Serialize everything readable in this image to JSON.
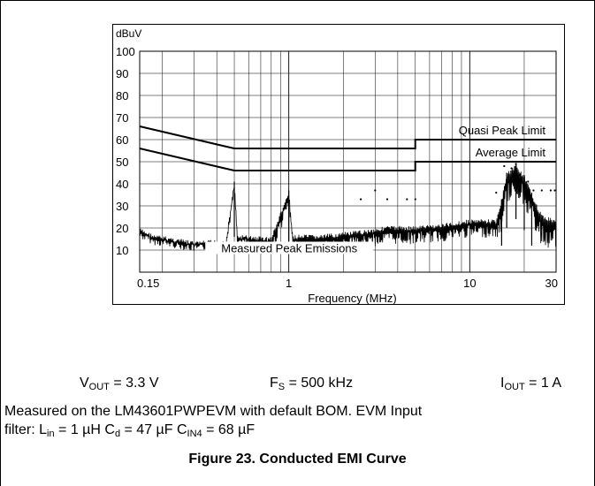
{
  "conditions": {
    "vout": {
      "sym": "V",
      "sub": "OUT",
      "value": "= 3.3 V"
    },
    "fs": {
      "sym": "F",
      "sub": "S",
      "value": "= 500 kHz"
    },
    "iout": {
      "sym": "I",
      "sub": "OUT",
      "value": "= 1 A"
    }
  },
  "note": {
    "line1": "Measured on the LM43601PWPEVM with default BOM. EVM Input",
    "line2_start": "filter: L",
    "lin_sub": "in",
    "lin_val": " = 1 µH C",
    "cd_sub": "d",
    "cd_val": " = 47 µF C",
    "cin_sub": "IN4",
    "cin_val": " = 68 µF"
  },
  "caption": "Figure 23. Conducted EMI Curve",
  "chart_data": {
    "type": "line",
    "ylabel": "dBuV",
    "xlabel": "Frequency (MHz)",
    "xscale": "log",
    "xlim": [
      0.15,
      30
    ],
    "ylim": [
      0,
      100
    ],
    "yticks": [
      10,
      20,
      30,
      40,
      50,
      60,
      70,
      80,
      90,
      100
    ],
    "xtick_labels": [
      {
        "value": 0.15,
        "label": "0.15"
      },
      {
        "value": 1,
        "label": "1"
      },
      {
        "value": 10,
        "label": "10"
      },
      {
        "value": 30,
        "label": "30"
      }
    ],
    "grid": true,
    "series": [
      {
        "name": "Quasi Peak Limit",
        "points": [
          [
            0.15,
            66
          ],
          [
            0.5,
            56
          ],
          [
            5,
            56
          ],
          [
            5,
            60
          ],
          [
            30,
            60
          ]
        ]
      },
      {
        "name": "Average Limit",
        "points": [
          [
            0.15,
            56
          ],
          [
            0.5,
            46
          ],
          [
            5,
            46
          ],
          [
            5,
            50
          ],
          [
            30,
            50
          ]
        ]
      },
      {
        "name": "Measured Peak Emissions",
        "points": [
          [
            0.15,
            20
          ],
          [
            0.18,
            17
          ],
          [
            0.22,
            16
          ],
          [
            0.3,
            14
          ],
          [
            0.45,
            15
          ],
          [
            0.5,
            41
          ],
          [
            0.52,
            17
          ],
          [
            0.8,
            16
          ],
          [
            1.0,
            37
          ],
          [
            1.05,
            17
          ],
          [
            1.5,
            17
          ],
          [
            2.5,
            19
          ],
          [
            3.5,
            21
          ],
          [
            5,
            21
          ],
          [
            7,
            22
          ],
          [
            10,
            24
          ],
          [
            14,
            24
          ],
          [
            15,
            33
          ],
          [
            16,
            45
          ],
          [
            18,
            49
          ],
          [
            20,
            44
          ],
          [
            22,
            36
          ],
          [
            25,
            26
          ],
          [
            30,
            24
          ]
        ]
      }
    ],
    "peak_markers": [
      [
        2.5,
        33
      ],
      [
        3.0,
        37
      ],
      [
        3.5,
        33
      ],
      [
        4.5,
        33
      ],
      [
        5.0,
        33
      ],
      [
        14.0,
        36
      ],
      [
        15.5,
        48
      ],
      [
        17.0,
        47
      ],
      [
        18.0,
        49
      ],
      [
        19.0,
        44
      ],
      [
        20.0,
        38
      ],
      [
        21.0,
        41
      ],
      [
        22.5,
        37
      ],
      [
        25.0,
        37
      ],
      [
        28.0,
        37
      ],
      [
        29.5,
        37
      ]
    ]
  }
}
